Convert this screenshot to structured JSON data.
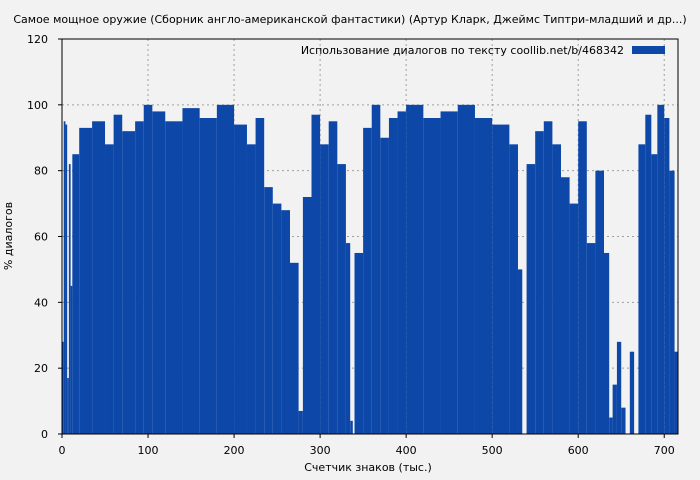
{
  "chart_data": {
    "type": "bar",
    "title": "Самое мощное оружие (Сборник англо-американской фантастики) (Артур Кларк, Джеймс Типтри-младший и др...)",
    "xlabel": "Счетчик знаков (тыс.)",
    "ylabel": "% диалогов",
    "xlim": [
      0,
      716
    ],
    "ylim": [
      0,
      120
    ],
    "xticks": [
      0,
      100,
      200,
      300,
      400,
      500,
      600,
      700
    ],
    "yticks": [
      0,
      20,
      40,
      60,
      80,
      100,
      120
    ],
    "grid": true,
    "legend_position": "top-right",
    "series": [
      {
        "name": "Использование диалогов по тексту  coollib.net/b/468342",
        "color": "#0d47a8",
        "segments": [
          [
            0,
            2,
            28
          ],
          [
            2,
            4,
            95
          ],
          [
            4,
            6,
            94
          ],
          [
            6,
            8,
            17
          ],
          [
            8,
            10,
            82
          ],
          [
            10,
            12,
            45
          ],
          [
            12,
            20,
            85
          ],
          [
            20,
            35,
            93
          ],
          [
            35,
            50,
            95
          ],
          [
            50,
            60,
            88
          ],
          [
            60,
            70,
            97
          ],
          [
            70,
            85,
            92
          ],
          [
            85,
            95,
            95
          ],
          [
            95,
            105,
            100
          ],
          [
            105,
            120,
            98
          ],
          [
            120,
            140,
            95
          ],
          [
            140,
            160,
            99
          ],
          [
            160,
            180,
            96
          ],
          [
            180,
            200,
            100
          ],
          [
            200,
            215,
            94
          ],
          [
            215,
            225,
            88
          ],
          [
            225,
            235,
            96
          ],
          [
            235,
            245,
            75
          ],
          [
            245,
            255,
            70
          ],
          [
            255,
            265,
            68
          ],
          [
            265,
            275,
            52
          ],
          [
            275,
            280,
            7
          ],
          [
            280,
            290,
            72
          ],
          [
            290,
            300,
            97
          ],
          [
            300,
            310,
            88
          ],
          [
            310,
            320,
            95
          ],
          [
            320,
            330,
            82
          ],
          [
            330,
            335,
            58
          ],
          [
            335,
            338,
            4
          ],
          [
            338,
            340,
            0
          ],
          [
            340,
            350,
            55
          ],
          [
            350,
            360,
            93
          ],
          [
            360,
            370,
            100
          ],
          [
            370,
            380,
            90
          ],
          [
            380,
            390,
            96
          ],
          [
            390,
            400,
            98
          ],
          [
            400,
            420,
            100
          ],
          [
            420,
            440,
            96
          ],
          [
            440,
            460,
            98
          ],
          [
            460,
            480,
            100
          ],
          [
            480,
            500,
            96
          ],
          [
            500,
            520,
            94
          ],
          [
            520,
            530,
            88
          ],
          [
            530,
            535,
            50
          ],
          [
            535,
            540,
            0
          ],
          [
            540,
            550,
            82
          ],
          [
            550,
            560,
            92
          ],
          [
            560,
            570,
            95
          ],
          [
            570,
            580,
            88
          ],
          [
            580,
            590,
            78
          ],
          [
            590,
            600,
            70
          ],
          [
            600,
            610,
            95
          ],
          [
            610,
            620,
            58
          ],
          [
            620,
            630,
            80
          ],
          [
            630,
            636,
            55
          ],
          [
            636,
            640,
            5
          ],
          [
            640,
            645,
            15
          ],
          [
            645,
            650,
            28
          ],
          [
            650,
            655,
            8
          ],
          [
            655,
            660,
            0
          ],
          [
            660,
            665,
            25
          ],
          [
            665,
            670,
            0
          ],
          [
            670,
            678,
            88
          ],
          [
            678,
            685,
            97
          ],
          [
            685,
            692,
            85
          ],
          [
            692,
            700,
            100
          ],
          [
            700,
            706,
            96
          ],
          [
            706,
            712,
            80
          ],
          [
            712,
            716,
            25
          ]
        ]
      }
    ]
  }
}
